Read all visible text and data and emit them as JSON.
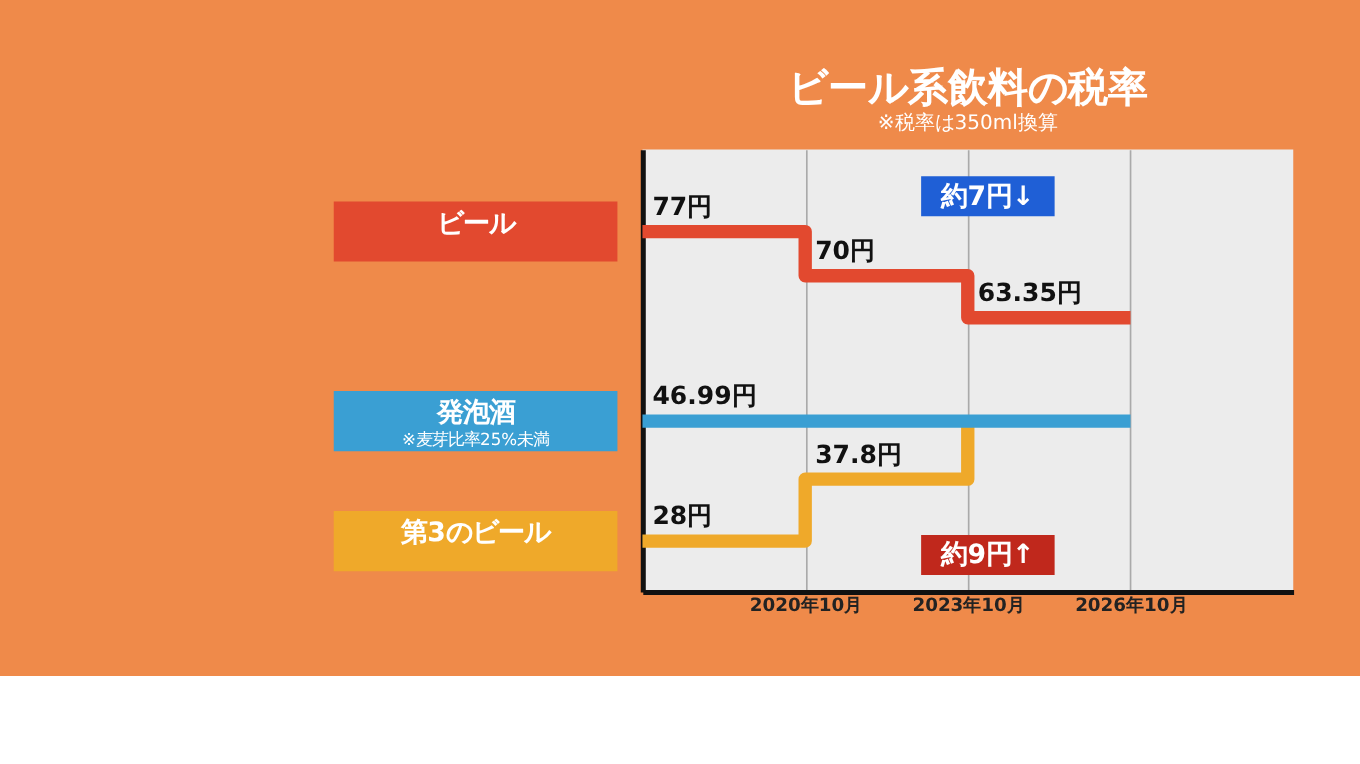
{
  "chart_data": {
    "type": "step",
    "title": "ビール系飲料の税率",
    "subtitle": "※税率は350ml換算",
    "xlim": [
      "2017-10",
      "2029-10"
    ],
    "xticks": [
      {
        "value": "2020-10",
        "label": "2020年10月"
      },
      {
        "value": "2023-10",
        "label": "2023年10月"
      },
      {
        "value": "2026-10",
        "label": "2026年10月"
      }
    ],
    "ylim": [
      20,
      90
    ],
    "tick_labels": "x",
    "grid": "x",
    "legend": false,
    "series": [
      {
        "name": "ビール",
        "color": "#e2492f",
        "x": [
          "2017-10",
          "2020-10",
          "2023-10",
          "2026-10"
        ],
        "values": [
          77,
          70,
          63.35,
          63.35
        ],
        "value_labels": [
          "77円",
          "70円",
          "63.35円",
          null
        ]
      },
      {
        "name": "第3のビール",
        "color": "#efa92a",
        "x": [
          "2017-10",
          "2020-10",
          "2023-10"
        ],
        "values": [
          28,
          37.8,
          46.99
        ],
        "value_labels": [
          "28円",
          "37.8円",
          null
        ]
      },
      {
        "name": "発泡酒",
        "color": "#3a9fd3",
        "x": [
          "2017-10",
          "2026-10"
        ],
        "values": [
          46.99,
          46.99
        ],
        "value_labels": [
          "46.99円",
          null
        ]
      }
    ],
    "annotations": [
      "約7円↓",
      "約9円↑",
      "※麦芽比率25%未満"
    ]
  }
}
